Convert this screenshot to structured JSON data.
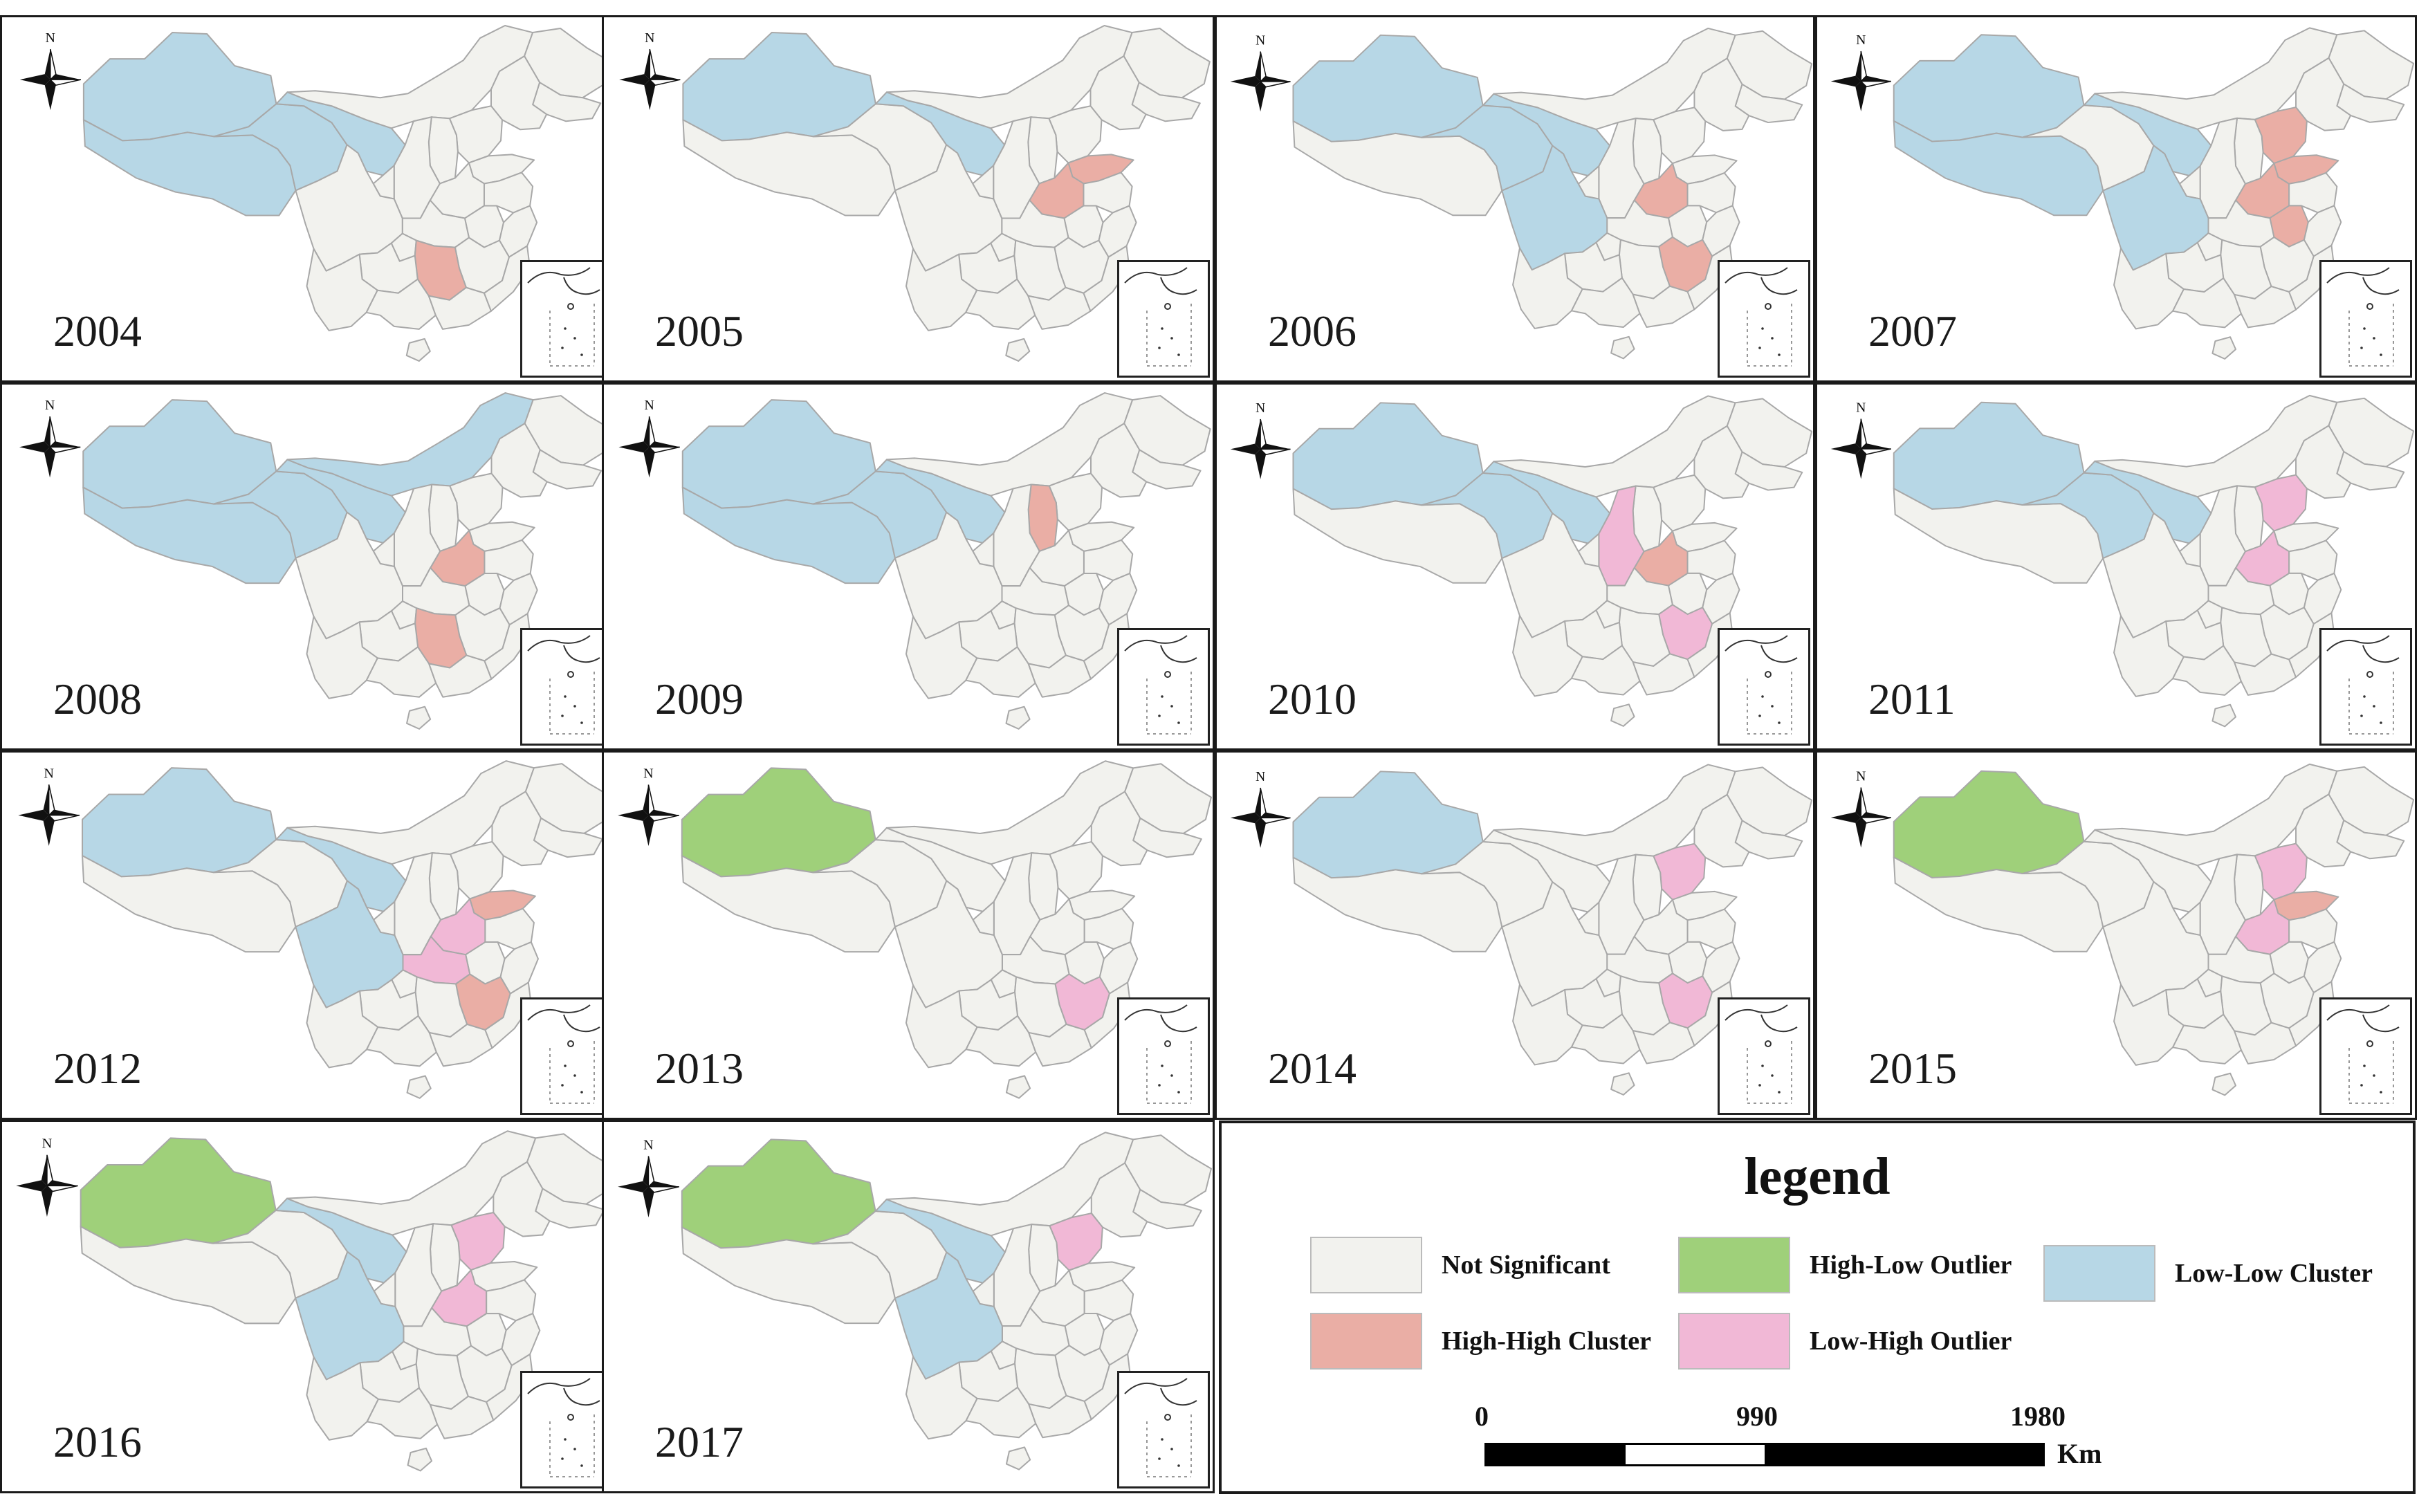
{
  "colors": {
    "not_significant": "#f2f2ee",
    "high_high": "#eaaea5",
    "low_low": "#b7d7e6",
    "low_high": "#f1b8d6",
    "high_low": "#9fd07a",
    "border": "#a8a8a8"
  },
  "north_label": "N",
  "panels": [
    {
      "year": "2004",
      "regions": {
        "xinjiang": "low_low",
        "tibet": "low_low",
        "qinghai": "low_low",
        "gansu": "low_low",
        "hunan": "high_high"
      }
    },
    {
      "year": "2005",
      "regions": {
        "xinjiang": "low_low",
        "gansu": "low_low",
        "henan": "high_high",
        "shandong": "high_high"
      }
    },
    {
      "year": "2006",
      "regions": {
        "xinjiang": "low_low",
        "qinghai": "low_low",
        "gansu": "low_low",
        "sichuan": "low_low",
        "henan": "high_high",
        "jiangxi": "high_high"
      }
    },
    {
      "year": "2007",
      "regions": {
        "xinjiang": "low_low",
        "tibet": "low_low",
        "gansu": "low_low",
        "sichuan": "low_low",
        "henan": "high_high",
        "shandong": "high_high",
        "hebei": "high_high",
        "anhui": "high_high"
      }
    },
    {
      "year": "2008",
      "regions": {
        "xinjiang": "low_low",
        "tibet": "low_low",
        "qinghai": "low_low",
        "gansu": "low_low",
        "innermongolia": "low_low",
        "henan": "high_high",
        "hunan": "high_high"
      }
    },
    {
      "year": "2009",
      "regions": {
        "xinjiang": "low_low",
        "tibet": "low_low",
        "qinghai": "low_low",
        "gansu": "low_low",
        "shanxi": "high_high"
      }
    },
    {
      "year": "2010",
      "regions": {
        "xinjiang": "low_low",
        "qinghai": "low_low",
        "gansu": "low_low",
        "henan": "high_high",
        "shaanxi": "low_high",
        "jiangxi": "low_high"
      }
    },
    {
      "year": "2011",
      "regions": {
        "xinjiang": "low_low",
        "qinghai": "low_low",
        "gansu": "low_low",
        "henan": "low_high",
        "hebei": "low_high"
      }
    },
    {
      "year": "2012",
      "regions": {
        "xinjiang": "low_low",
        "gansu": "low_low",
        "sichuan": "low_low",
        "shandong": "high_high",
        "henan": "low_high",
        "hubei": "low_high",
        "jiangxi": "high_high"
      }
    },
    {
      "year": "2013",
      "regions": {
        "xinjiang": "high_low",
        "jiangxi": "low_high"
      }
    },
    {
      "year": "2014",
      "regions": {
        "xinjiang": "low_low",
        "jiangxi": "low_high",
        "hebei": "low_high"
      }
    },
    {
      "year": "2015",
      "regions": {
        "xinjiang": "high_low",
        "shandong": "high_high",
        "henan": "low_high",
        "hebei": "low_high"
      }
    },
    {
      "year": "2016",
      "regions": {
        "xinjiang": "high_low",
        "sichuan": "low_low",
        "gansu": "low_low",
        "henan": "low_high",
        "hebei": "low_high"
      }
    },
    {
      "year": "2017",
      "regions": {
        "xinjiang": "high_low",
        "sichuan": "low_low",
        "gansu": "low_low",
        "hebei": "low_high"
      }
    }
  ],
  "legend": {
    "title": "legend",
    "items": [
      {
        "key": "not_significant",
        "label": "Not Significant"
      },
      {
        "key": "high_low",
        "label": "High-Low Outlier"
      },
      {
        "key": "low_low",
        "label": "Low-Low Cluster"
      },
      {
        "key": "high_high",
        "label": "High-High Cluster"
      },
      {
        "key": "low_high",
        "label": "Low-High Outlier"
      }
    ],
    "scale": {
      "ticks": [
        "0",
        "990",
        "1980"
      ],
      "unit": "Km"
    }
  }
}
